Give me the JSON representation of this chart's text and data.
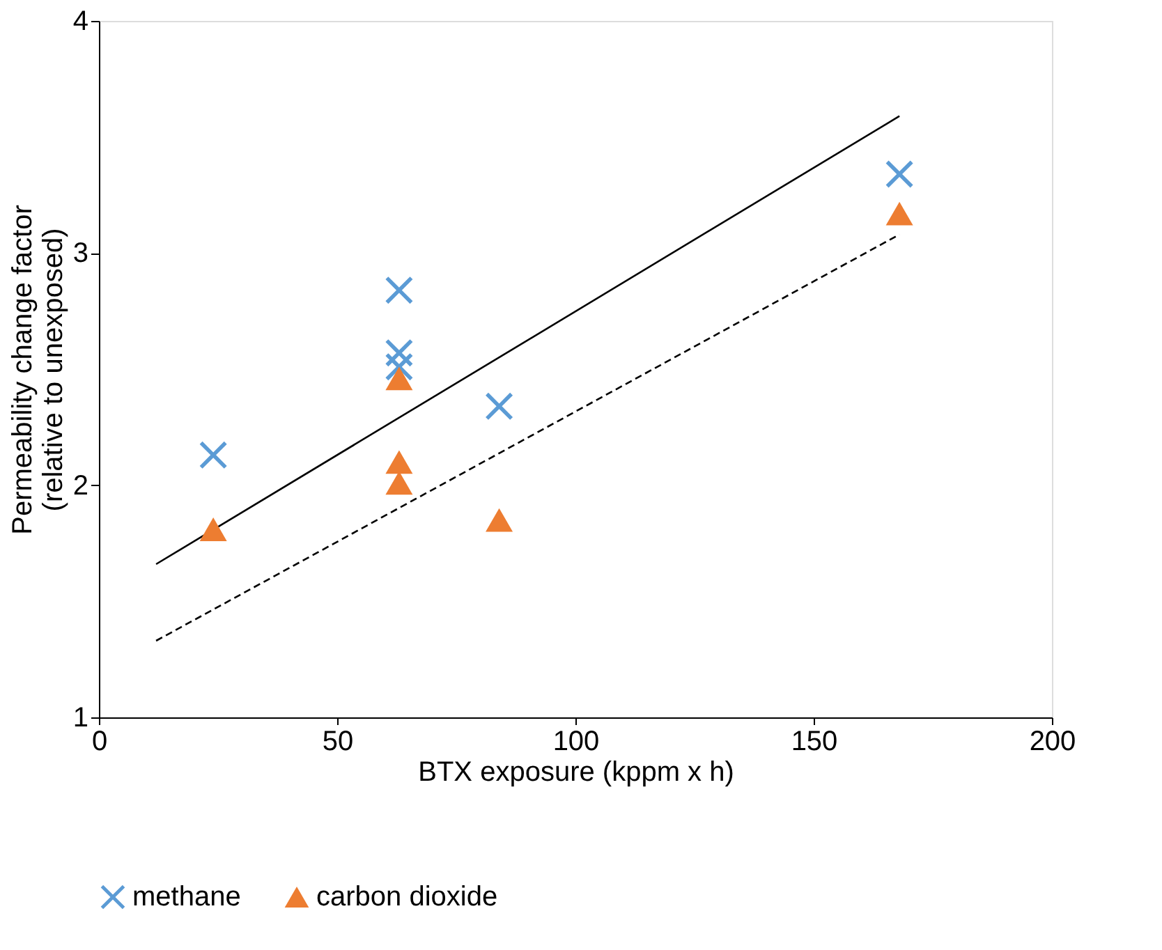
{
  "chart_data": {
    "type": "scatter",
    "xlabel": "BTX exposure (kppm x h)",
    "ylabel": "Permeability change factor\n(relative to unexposed)",
    "xlim": [
      0,
      200
    ],
    "xticks": [
      0,
      50,
      100,
      150,
      200
    ],
    "ylim": [
      1,
      4
    ],
    "yticks": [
      1,
      2,
      3,
      4
    ],
    "grid": false,
    "legend": "bottom",
    "series": [
      {
        "name": "methane",
        "color": "#5b9bd5",
        "marker": "cross",
        "x": [
          24,
          63,
          63,
          63,
          84,
          168
        ],
        "values": [
          2.13,
          2.84,
          2.57,
          2.51,
          2.34,
          3.34
        ]
      },
      {
        "name": "carbon dioxide",
        "color": "#ed7d31",
        "marker": "triangle",
        "x": [
          24,
          63,
          63,
          63,
          84,
          168
        ],
        "values": [
          1.81,
          2.46,
          2.1,
          2.01,
          1.85,
          3.17
        ]
      },
      {
        "type": "line",
        "color": "#000000",
        "line_style": "solid",
        "x": [
          12,
          168
        ],
        "values": [
          1.66,
          3.59
        ]
      },
      {
        "type": "line",
        "color": "#000000",
        "line_style": "dashed",
        "x": [
          12,
          168
        ],
        "values": [
          1.33,
          3.08
        ]
      }
    ]
  }
}
